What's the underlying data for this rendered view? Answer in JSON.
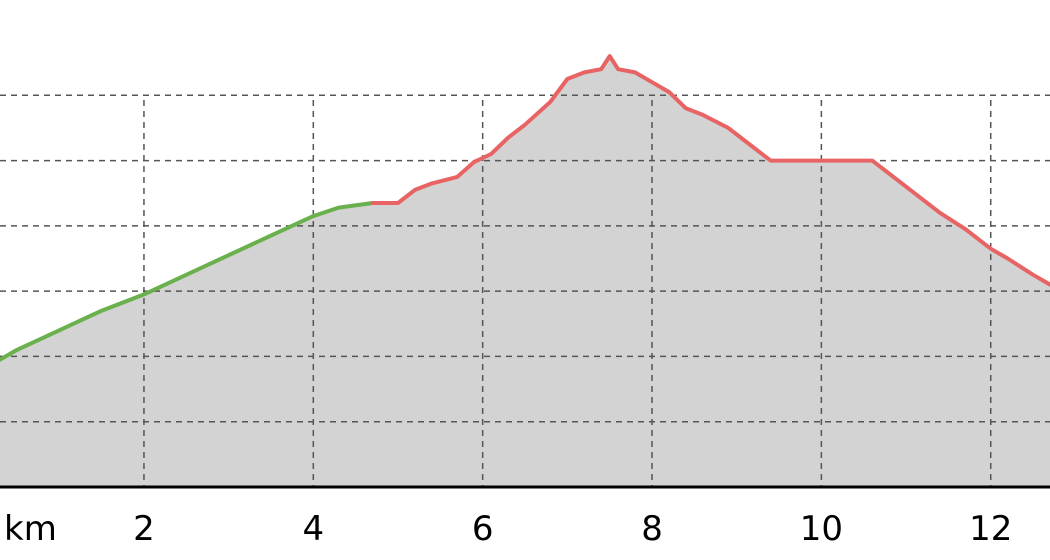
{
  "chart_data": {
    "type": "area",
    "title": "",
    "xlabel": "km",
    "ylabel": "",
    "x_unit": "km",
    "xlim": [
      0.3,
      12.7
    ],
    "ylim": [
      0,
      70
    ],
    "x_ticks": [
      2,
      4,
      6,
      8,
      10,
      12
    ],
    "y_gridlines": [
      10,
      20,
      30,
      40,
      50,
      60
    ],
    "grid": true,
    "grid_style": "dashed",
    "fill_color": "#d3d3d3",
    "axis_color": "#000000",
    "grid_color": "#555555",
    "segment_colors": {
      "uphill": "#6ab04c",
      "downhill": "#e86464"
    },
    "series": [
      {
        "color": "#6ab04c",
        "x": [
          0.3,
          0.5,
          1.0,
          1.5,
          2.0,
          2.5,
          3.0,
          3.5,
          4.0,
          4.3,
          4.7
        ],
        "y": [
          19.5,
          21.0,
          24.0,
          27.0,
          29.5,
          32.5,
          35.5,
          38.5,
          41.5,
          42.8,
          43.5
        ]
      },
      {
        "color": "#e86464",
        "x": [
          4.7,
          5.0,
          5.2,
          5.4,
          5.7,
          5.9,
          6.1,
          6.3,
          6.5,
          6.8,
          7.0,
          7.2,
          7.4,
          7.5,
          7.6,
          7.8,
          8.0,
          8.2,
          8.4,
          8.6,
          8.9,
          9.1,
          9.4,
          9.7,
          10.0,
          10.3,
          10.6,
          10.8,
          11.1,
          11.4,
          11.7,
          12.0,
          12.2,
          12.5,
          12.7
        ],
        "y": [
          43.5,
          43.5,
          45.5,
          46.5,
          47.5,
          49.8,
          51.0,
          53.5,
          55.5,
          59.0,
          62.5,
          63.5,
          64.0,
          66.0,
          64.0,
          63.5,
          62.0,
          60.5,
          58.0,
          57.0,
          55.0,
          53.0,
          50.0,
          50.0,
          50.0,
          50.0,
          50.0,
          48.0,
          45.0,
          42.0,
          39.5,
          36.5,
          35.0,
          32.5,
          31.0
        ]
      }
    ]
  }
}
